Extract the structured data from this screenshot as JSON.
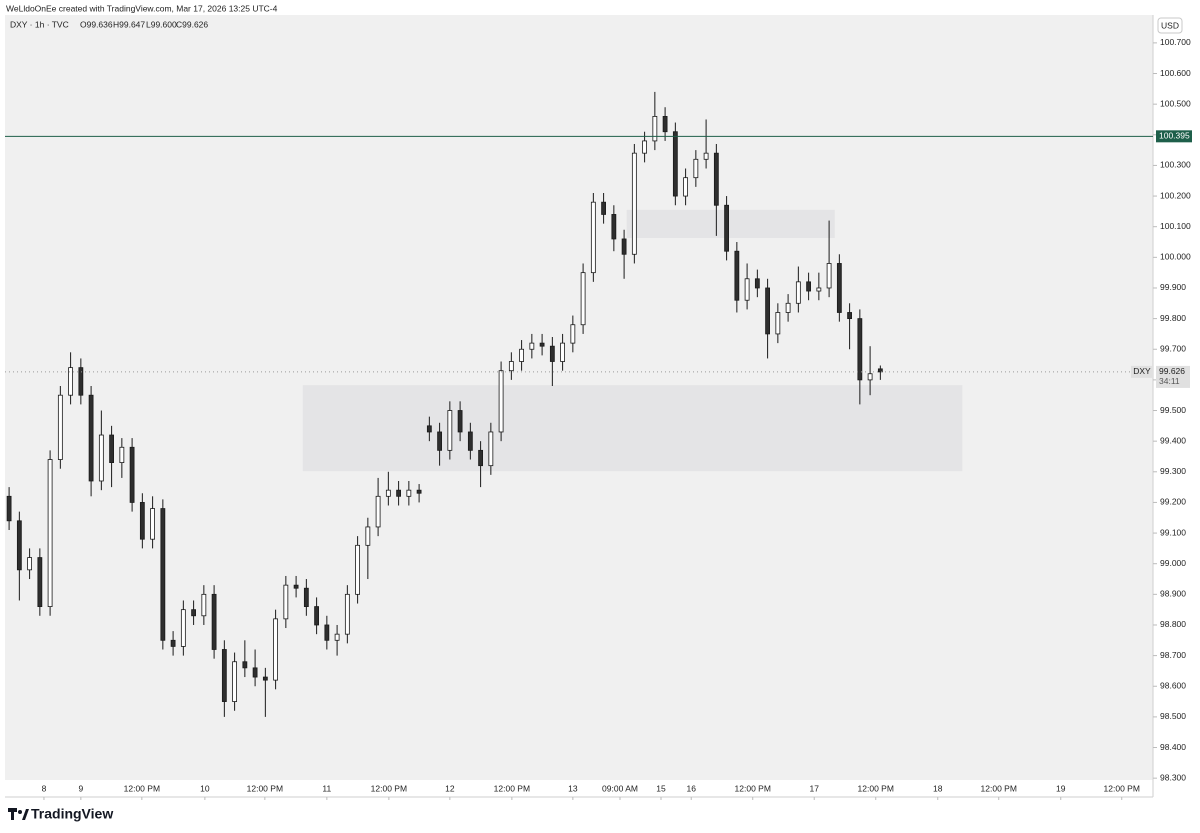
{
  "header": {
    "attribution": "WeLldoOnEe created with TradingView.com, Mar 17, 2026 13:25 UTC-4",
    "legend": "DXY · 1h · TVC",
    "ohlc": [
      "O99.636",
      "H99.647",
      "L99.600",
      "C99.626"
    ]
  },
  "chart_data": {
    "type": "candlestick",
    "currency": "USD",
    "symbol_label": "DXY",
    "countdown": "34:11",
    "up_color": "#ffffff",
    "down_color": "#2e2e2e",
    "outline_color": "#1a1a1a",
    "x": [
      -14,
      -12,
      -10,
      -8,
      -6,
      -4,
      -2,
      0,
      2,
      4,
      6,
      8,
      10,
      12,
      14,
      16,
      18,
      20,
      22,
      24,
      26,
      28,
      30,
      32,
      34,
      36,
      38,
      40,
      42,
      44,
      46,
      48,
      50,
      52,
      54,
      56,
      58,
      60,
      62,
      64,
      66,
      68,
      70,
      72,
      74,
      76,
      78,
      80,
      82,
      84,
      86,
      88,
      90,
      92,
      94,
      96,
      98,
      100,
      102,
      104,
      106,
      108,
      110,
      112,
      114,
      116,
      118,
      120,
      122,
      124,
      126,
      128,
      130,
      132,
      134,
      136,
      138,
      140,
      142,
      144,
      146,
      148,
      150,
      152,
      154,
      156
    ],
    "open": [
      99.22,
      99.14,
      98.98,
      99.02,
      98.86,
      99.34,
      99.55,
      99.64,
      99.55,
      99.27,
      99.42,
      99.33,
      99.38,
      99.2,
      99.08,
      99.18,
      98.75,
      98.73,
      98.85,
      98.83,
      98.9,
      98.72,
      98.55,
      98.68,
      98.66,
      98.63,
      98.62,
      98.82,
      98.93,
      98.92,
      98.86,
      98.8,
      98.75,
      98.77,
      98.9,
      99.06,
      99.12,
      99.22,
      99.24,
      99.22,
      99.24,
      99.45,
      99.43,
      99.37,
      99.5,
      99.43,
      99.37,
      99.32,
      99.43,
      99.63,
      99.66,
      99.7,
      99.72,
      99.71,
      99.66,
      99.72,
      99.78,
      99.95,
      100.18,
      100.14,
      100.06,
      100.01,
      100.34,
      100.38,
      100.46,
      100.41,
      100.2,
      100.26,
      100.32,
      100.34,
      100.17,
      100.02,
      99.86,
      99.93,
      99.9,
      99.75,
      99.82,
      99.85,
      99.92,
      99.89,
      99.9,
      99.98,
      99.82,
      99.8,
      99.6,
      99.636
    ],
    "high": [
      99.25,
      99.17,
      99.05,
      99.05,
      99.37,
      99.58,
      99.69,
      99.67,
      99.58,
      99.5,
      99.45,
      99.41,
      99.41,
      99.23,
      99.22,
      99.21,
      98.78,
      98.88,
      98.88,
      98.93,
      98.93,
      98.75,
      98.71,
      98.75,
      98.72,
      98.66,
      98.85,
      98.96,
      98.96,
      98.95,
      98.89,
      98.83,
      98.8,
      98.93,
      99.09,
      99.15,
      99.28,
      99.3,
      99.27,
      99.27,
      99.26,
      99.48,
      99.46,
      99.53,
      99.53,
      99.46,
      99.4,
      99.46,
      99.66,
      99.69,
      99.73,
      99.75,
      99.75,
      99.74,
      99.75,
      99.81,
      99.98,
      100.21,
      100.21,
      100.17,
      100.09,
      100.37,
      100.41,
      100.54,
      100.49,
      100.44,
      100.29,
      100.35,
      100.45,
      100.37,
      100.2,
      100.05,
      99.98,
      99.96,
      99.93,
      99.85,
      99.88,
      99.97,
      99.95,
      99.95,
      100.12,
      100.01,
      99.85,
      99.83,
      99.71,
      99.647
    ],
    "low": [
      99.11,
      98.88,
      98.95,
      98.83,
      98.83,
      99.31,
      99.52,
      99.52,
      99.22,
      99.24,
      99.25,
      99.28,
      99.17,
      99.05,
      99.05,
      98.72,
      98.7,
      98.7,
      98.8,
      98.8,
      98.69,
      98.5,
      98.52,
      98.63,
      98.6,
      98.5,
      98.59,
      98.79,
      98.89,
      98.83,
      98.77,
      98.72,
      98.7,
      98.74,
      98.87,
      98.95,
      99.09,
      99.19,
      99.19,
      99.19,
      99.2,
      99.4,
      99.32,
      99.34,
      99.4,
      99.34,
      99.25,
      99.29,
      99.4,
      99.6,
      99.63,
      99.67,
      99.68,
      99.58,
      99.63,
      99.69,
      99.75,
      99.92,
      100.11,
      100.02,
      99.93,
      99.98,
      100.31,
      100.35,
      100.38,
      100.17,
      100.17,
      100.23,
      100.29,
      100.07,
      99.99,
      99.82,
      99.83,
      99.87,
      99.67,
      99.72,
      99.79,
      99.82,
      99.86,
      99.86,
      99.87,
      99.79,
      99.7,
      99.52,
      99.55,
      99.6
    ],
    "close": [
      99.14,
      98.98,
      99.02,
      98.86,
      99.34,
      99.55,
      99.64,
      99.55,
      99.27,
      99.42,
      99.33,
      99.38,
      99.2,
      99.08,
      99.18,
      98.75,
      98.73,
      98.85,
      98.83,
      98.9,
      98.72,
      98.55,
      98.68,
      98.66,
      98.63,
      98.62,
      98.82,
      98.93,
      98.92,
      98.86,
      98.8,
      98.75,
      98.77,
      98.9,
      99.06,
      99.12,
      99.22,
      99.24,
      99.22,
      99.24,
      99.23,
      99.43,
      99.37,
      99.5,
      99.43,
      99.37,
      99.32,
      99.43,
      99.63,
      99.66,
      99.7,
      99.72,
      99.71,
      99.66,
      99.72,
      99.78,
      99.95,
      100.18,
      100.14,
      100.06,
      100.01,
      100.34,
      100.38,
      100.46,
      100.41,
      100.2,
      100.26,
      100.32,
      100.34,
      100.17,
      100.02,
      99.86,
      99.93,
      99.9,
      99.75,
      99.82,
      99.85,
      99.92,
      99.89,
      99.9,
      99.98,
      99.82,
      99.8,
      99.6,
      99.62,
      99.626
    ],
    "xlim": [
      -14.8,
      209.2
    ],
    "ylim": [
      98.294,
      100.791
    ],
    "xticks": [
      {
        "value": -7.2,
        "label": "8"
      },
      {
        "value": 0,
        "label": "9"
      },
      {
        "value": 11.9,
        "label": "12:00 PM"
      },
      {
        "value": 24.2,
        "label": "10"
      },
      {
        "value": 35.9,
        "label": "12:00 PM"
      },
      {
        "value": 48,
        "label": "11"
      },
      {
        "value": 60.1,
        "label": "12:00 PM"
      },
      {
        "value": 72,
        "label": "12"
      },
      {
        "value": 84.1,
        "label": "12:00 PM"
      },
      {
        "value": 96,
        "label": "13"
      },
      {
        "value": 105.2,
        "label": "09:00 AM"
      },
      {
        "value": 113.2,
        "label": "15"
      },
      {
        "value": 119.1,
        "label": "16"
      },
      {
        "value": 131.1,
        "label": "12:00 PM"
      },
      {
        "value": 143.1,
        "label": "17"
      },
      {
        "value": 155.1,
        "label": "12:00 PM"
      },
      {
        "value": 167.2,
        "label": "18"
      },
      {
        "value": 179.1,
        "label": "12:00 PM"
      },
      {
        "value": 191.2,
        "label": "19"
      },
      {
        "value": 203.1,
        "label": "12:00 PM"
      }
    ],
    "yticks": [
      {
        "value": 98.3,
        "label": "98.300"
      },
      {
        "value": 98.4,
        "label": "98.400"
      },
      {
        "value": 98.5,
        "label": "98.500"
      },
      {
        "value": 98.6,
        "label": "98.600"
      },
      {
        "value": 98.7,
        "label": "98.700"
      },
      {
        "value": 98.8,
        "label": "98.800"
      },
      {
        "value": 98.9,
        "label": "98.900"
      },
      {
        "value": 99,
        "label": "99.000"
      },
      {
        "value": 99.1,
        "label": "99.100"
      },
      {
        "value": 99.2,
        "label": "99.200"
      },
      {
        "value": 99.3,
        "label": "99.300"
      },
      {
        "value": 99.4,
        "label": "99.400"
      },
      {
        "value": 99.5,
        "label": "99.500"
      },
      {
        "value": 99.6,
        "label": "99.600"
      },
      {
        "value": 99.7,
        "label": "99.700"
      },
      {
        "value": 99.8,
        "label": "99.800"
      },
      {
        "value": 99.9,
        "label": "99.900"
      },
      {
        "value": 100,
        "label": "100.000"
      },
      {
        "value": 100.1,
        "label": "100.100"
      },
      {
        "value": 100.2,
        "label": "100.200"
      },
      {
        "value": 100.3,
        "label": "100.300"
      },
      {
        "value": 100.4,
        "label": "100.400"
      },
      {
        "value": 100.5,
        "label": "100.500"
      },
      {
        "value": 100.6,
        "label": "100.600"
      },
      {
        "value": 100.7,
        "label": "100.700"
      }
    ],
    "last_price": {
      "value": 99.626,
      "label": "99.626"
    },
    "hline": {
      "value": 100.395,
      "label": "100.395",
      "color": "#1e5f4a"
    },
    "zones": [
      {
        "x": [
          43.3,
          172
        ],
        "y": [
          99.302,
          99.583
        ],
        "color": "#e4e4e6"
      },
      {
        "x": [
          106.5,
          147.1
        ],
        "y": [
          100.063,
          100.155
        ],
        "color": "#e4e4e6"
      }
    ]
  },
  "footer": {
    "brand": "TradingView"
  }
}
